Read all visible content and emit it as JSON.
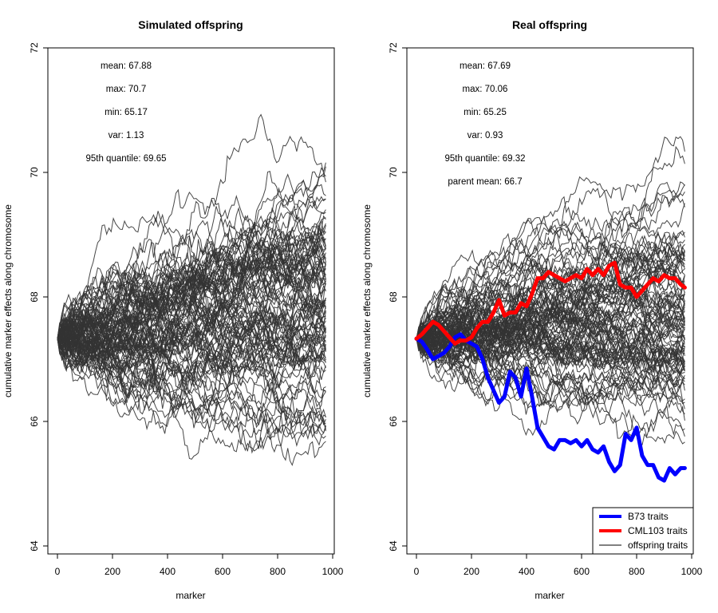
{
  "chart_data": [
    {
      "type": "line",
      "title": "Simulated offspring",
      "xlabel": "marker",
      "ylabel": "cumulative marker effects along chromosome",
      "xlim": [
        0,
        1000
      ],
      "ylim": [
        64,
        72
      ],
      "xticks": [
        0,
        200,
        400,
        600,
        800,
        1000
      ],
      "yticks": [
        64,
        66,
        68,
        70,
        72
      ],
      "n_markers": 975,
      "start_value": 67.33,
      "grid": false,
      "annotations": [
        {
          "label": "mean: 67.88"
        },
        {
          "label": "max: 70.7"
        },
        {
          "label": "min: 65.17"
        },
        {
          "label": "var: 1.13"
        },
        {
          "label": "95th quantile: 69.65"
        }
      ],
      "offspring_summary": {
        "count": 100,
        "color": "#333333",
        "end_mean": 67.88,
        "end_max": 70.7,
        "end_min": 65.17,
        "end_var": 1.13,
        "end_q95": 69.65
      }
    },
    {
      "type": "line",
      "title": "Real offspring",
      "xlabel": "marker",
      "ylabel": "cumulative marker effects along chromosome",
      "xlim": [
        0,
        1000
      ],
      "ylim": [
        64,
        72
      ],
      "xticks": [
        0,
        200,
        400,
        600,
        800,
        1000
      ],
      "yticks": [
        64,
        66,
        68,
        70,
        72
      ],
      "n_markers": 975,
      "start_value": 67.33,
      "grid": false,
      "annotations": [
        {
          "label": "mean: 67.69"
        },
        {
          "label": "max: 70.06"
        },
        {
          "label": "min: 65.25"
        },
        {
          "label": "var: 0.93"
        },
        {
          "label": "95th quantile: 69.32"
        },
        {
          "label": "parent mean: 66.7"
        }
      ],
      "offspring_summary": {
        "count": 100,
        "color": "#333333",
        "end_mean": 67.69,
        "end_max": 70.06,
        "end_min": 65.25,
        "end_var": 0.93,
        "end_q95": 69.32
      },
      "parents": [
        {
          "name": "B73 traits",
          "color": "#0000ff",
          "x": [
            0,
            20,
            40,
            60,
            80,
            100,
            120,
            140,
            160,
            180,
            200,
            220,
            240,
            260,
            280,
            300,
            320,
            340,
            360,
            380,
            400,
            420,
            440,
            460,
            480,
            500,
            520,
            540,
            560,
            580,
            600,
            620,
            640,
            660,
            680,
            700,
            720,
            740,
            760,
            780,
            800,
            820,
            840,
            860,
            880,
            900,
            920,
            940,
            960,
            975
          ],
          "y": [
            67.33,
            67.28,
            67.15,
            67.0,
            67.05,
            67.1,
            67.2,
            67.35,
            67.4,
            67.3,
            67.25,
            67.2,
            67.0,
            66.7,
            66.5,
            66.3,
            66.4,
            66.8,
            66.7,
            66.4,
            66.85,
            66.4,
            65.9,
            65.75,
            65.6,
            65.55,
            65.7,
            65.7,
            65.65,
            65.7,
            65.6,
            65.7,
            65.55,
            65.5,
            65.6,
            65.35,
            65.2,
            65.3,
            65.8,
            65.7,
            65.9,
            65.45,
            65.3,
            65.3,
            65.1,
            65.05,
            65.25,
            65.15,
            65.25,
            65.25
          ]
        },
        {
          "name": "CML103 traits",
          "color": "#ff0000",
          "x": [
            0,
            20,
            40,
            60,
            80,
            100,
            120,
            140,
            160,
            180,
            200,
            220,
            240,
            260,
            280,
            300,
            320,
            340,
            360,
            380,
            400,
            420,
            440,
            460,
            480,
            500,
            520,
            540,
            560,
            580,
            600,
            620,
            640,
            660,
            680,
            700,
            720,
            740,
            760,
            780,
            800,
            820,
            840,
            860,
            880,
            900,
            920,
            940,
            960,
            975
          ],
          "y": [
            67.33,
            67.4,
            67.5,
            67.6,
            67.55,
            67.45,
            67.35,
            67.25,
            67.3,
            67.3,
            67.35,
            67.5,
            67.6,
            67.6,
            67.75,
            67.95,
            67.7,
            67.75,
            67.75,
            67.9,
            67.85,
            68.05,
            68.3,
            68.3,
            68.4,
            68.35,
            68.3,
            68.25,
            68.3,
            68.35,
            68.3,
            68.45,
            68.35,
            68.45,
            68.35,
            68.5,
            68.55,
            68.2,
            68.15,
            68.15,
            68.0,
            68.1,
            68.2,
            68.3,
            68.25,
            68.35,
            68.3,
            68.3,
            68.2,
            68.15
          ]
        }
      ],
      "legend": {
        "position": "bottom-right",
        "items": [
          {
            "label": "B73 traits",
            "color": "#0000ff",
            "thick": true
          },
          {
            "label": "CML103 traits",
            "color": "#ff0000",
            "thick": true
          },
          {
            "label": "offspring traits",
            "color": "#000000",
            "thick": false
          }
        ]
      }
    }
  ]
}
